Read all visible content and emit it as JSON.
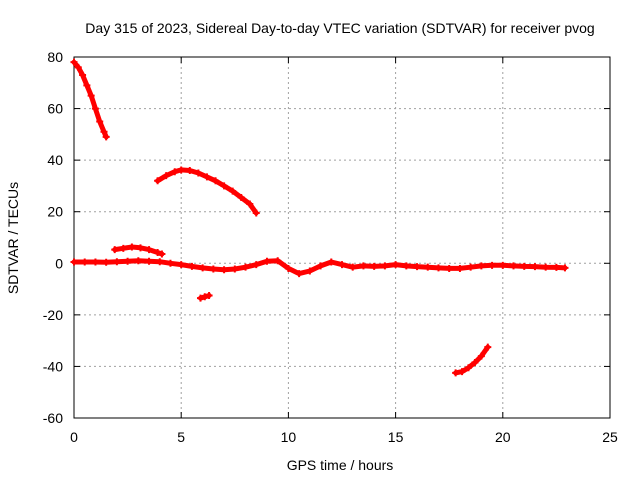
{
  "chart_data": {
    "type": "scatter",
    "title": "Day 315 of 2023, Sidereal Day-to-day VTEC variation (SDTVAR) for receiver pvog",
    "xlabel": "GPS time / hours",
    "ylabel": "SDTVAR / TECUs",
    "xlim": [
      0,
      25
    ],
    "ylim": [
      -60,
      80
    ],
    "xticks": [
      0,
      5,
      10,
      15,
      20,
      25
    ],
    "yticks": [
      -60,
      -40,
      -20,
      0,
      20,
      40,
      60,
      80
    ],
    "grid": true,
    "color": "#ff0000",
    "series": [
      {
        "name": "main-trace",
        "x": [
          0,
          0.5,
          1,
          1.5,
          2,
          2.5,
          3,
          3.5,
          4,
          4.5,
          5,
          5.5,
          6,
          6.5,
          7,
          7.5,
          8,
          8.5,
          9,
          9.5,
          10,
          10.5,
          11,
          11.5,
          12,
          12.5,
          13,
          13.5,
          14,
          14.5,
          15,
          15.5,
          16,
          16.5,
          17,
          17.5,
          18,
          18.5,
          19,
          19.5,
          20,
          20.5,
          21,
          21.5,
          22,
          22.5,
          22.9
        ],
        "y": [
          0.5,
          0.5,
          0.5,
          0.4,
          0.6,
          0.8,
          1.0,
          0.8,
          0.6,
          0,
          -0.5,
          -1.2,
          -1.8,
          -2.2,
          -2.5,
          -2.2,
          -1.5,
          -0.5,
          0.8,
          1.0,
          -2.0,
          -4.0,
          -3.0,
          -1.0,
          0.5,
          -0.5,
          -1.5,
          -1.0,
          -1.2,
          -1.0,
          -0.5,
          -1.0,
          -1.3,
          -1.5,
          -1.8,
          -2.0,
          -2.0,
          -1.5,
          -1.0,
          -0.8,
          -0.8,
          -1.0,
          -1.2,
          -1.3,
          -1.5,
          -1.6,
          -1.8
        ]
      },
      {
        "name": "steep-segment",
        "x": [
          0,
          0.2,
          0.4,
          0.6,
          0.8,
          1.0,
          1.2,
          1.4,
          1.5
        ],
        "y": [
          78,
          76,
          73,
          69,
          65,
          60,
          55,
          51,
          49
        ]
      },
      {
        "name": "arc-segment",
        "x": [
          3.9,
          4.3,
          4.7,
          5.0,
          5.4,
          5.8,
          6.2,
          6.6,
          7.0,
          7.4,
          7.8,
          8.2,
          8.5
        ],
        "y": [
          32,
          34,
          35.5,
          36.2,
          36,
          35,
          33.5,
          32,
          30,
          28,
          25.5,
          23,
          19.5
        ]
      },
      {
        "name": "small-hump",
        "x": [
          1.9,
          2.3,
          2.7,
          3.1,
          3.5,
          3.9,
          4.1
        ],
        "y": [
          5.3,
          5.8,
          6.3,
          6.0,
          5.3,
          4.2,
          3.6
        ]
      },
      {
        "name": "short-negative",
        "x": [
          5.9,
          6.1,
          6.3
        ],
        "y": [
          -13.5,
          -13,
          -12.5
        ]
      },
      {
        "name": "late-negative",
        "x": [
          17.8,
          18.1,
          18.4,
          18.7,
          19.0,
          19.3
        ],
        "y": [
          -42.5,
          -42,
          -40.5,
          -38.5,
          -36,
          -32.5
        ]
      }
    ]
  }
}
